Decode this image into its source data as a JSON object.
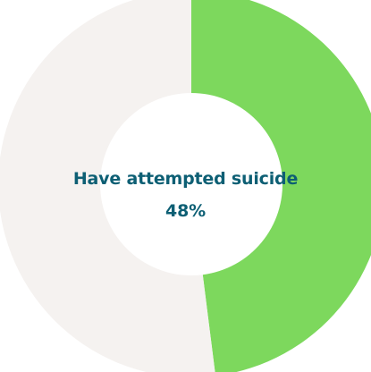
{
  "chart_data": {
    "type": "pie",
    "donut": true,
    "center_text": "Have attempted suicide",
    "slices": [
      {
        "label": "Have attempted suicide",
        "value": 48,
        "display": "48%",
        "color": "#7dd85d"
      },
      {
        "label": "",
        "value": 52,
        "color": "#f5f2f0"
      }
    ],
    "start_angle": "top",
    "direction": "clockwise"
  },
  "colors": {
    "accent": "#7dd85d",
    "remainder": "#f5f2f0",
    "label_text": "#0d5f74"
  }
}
